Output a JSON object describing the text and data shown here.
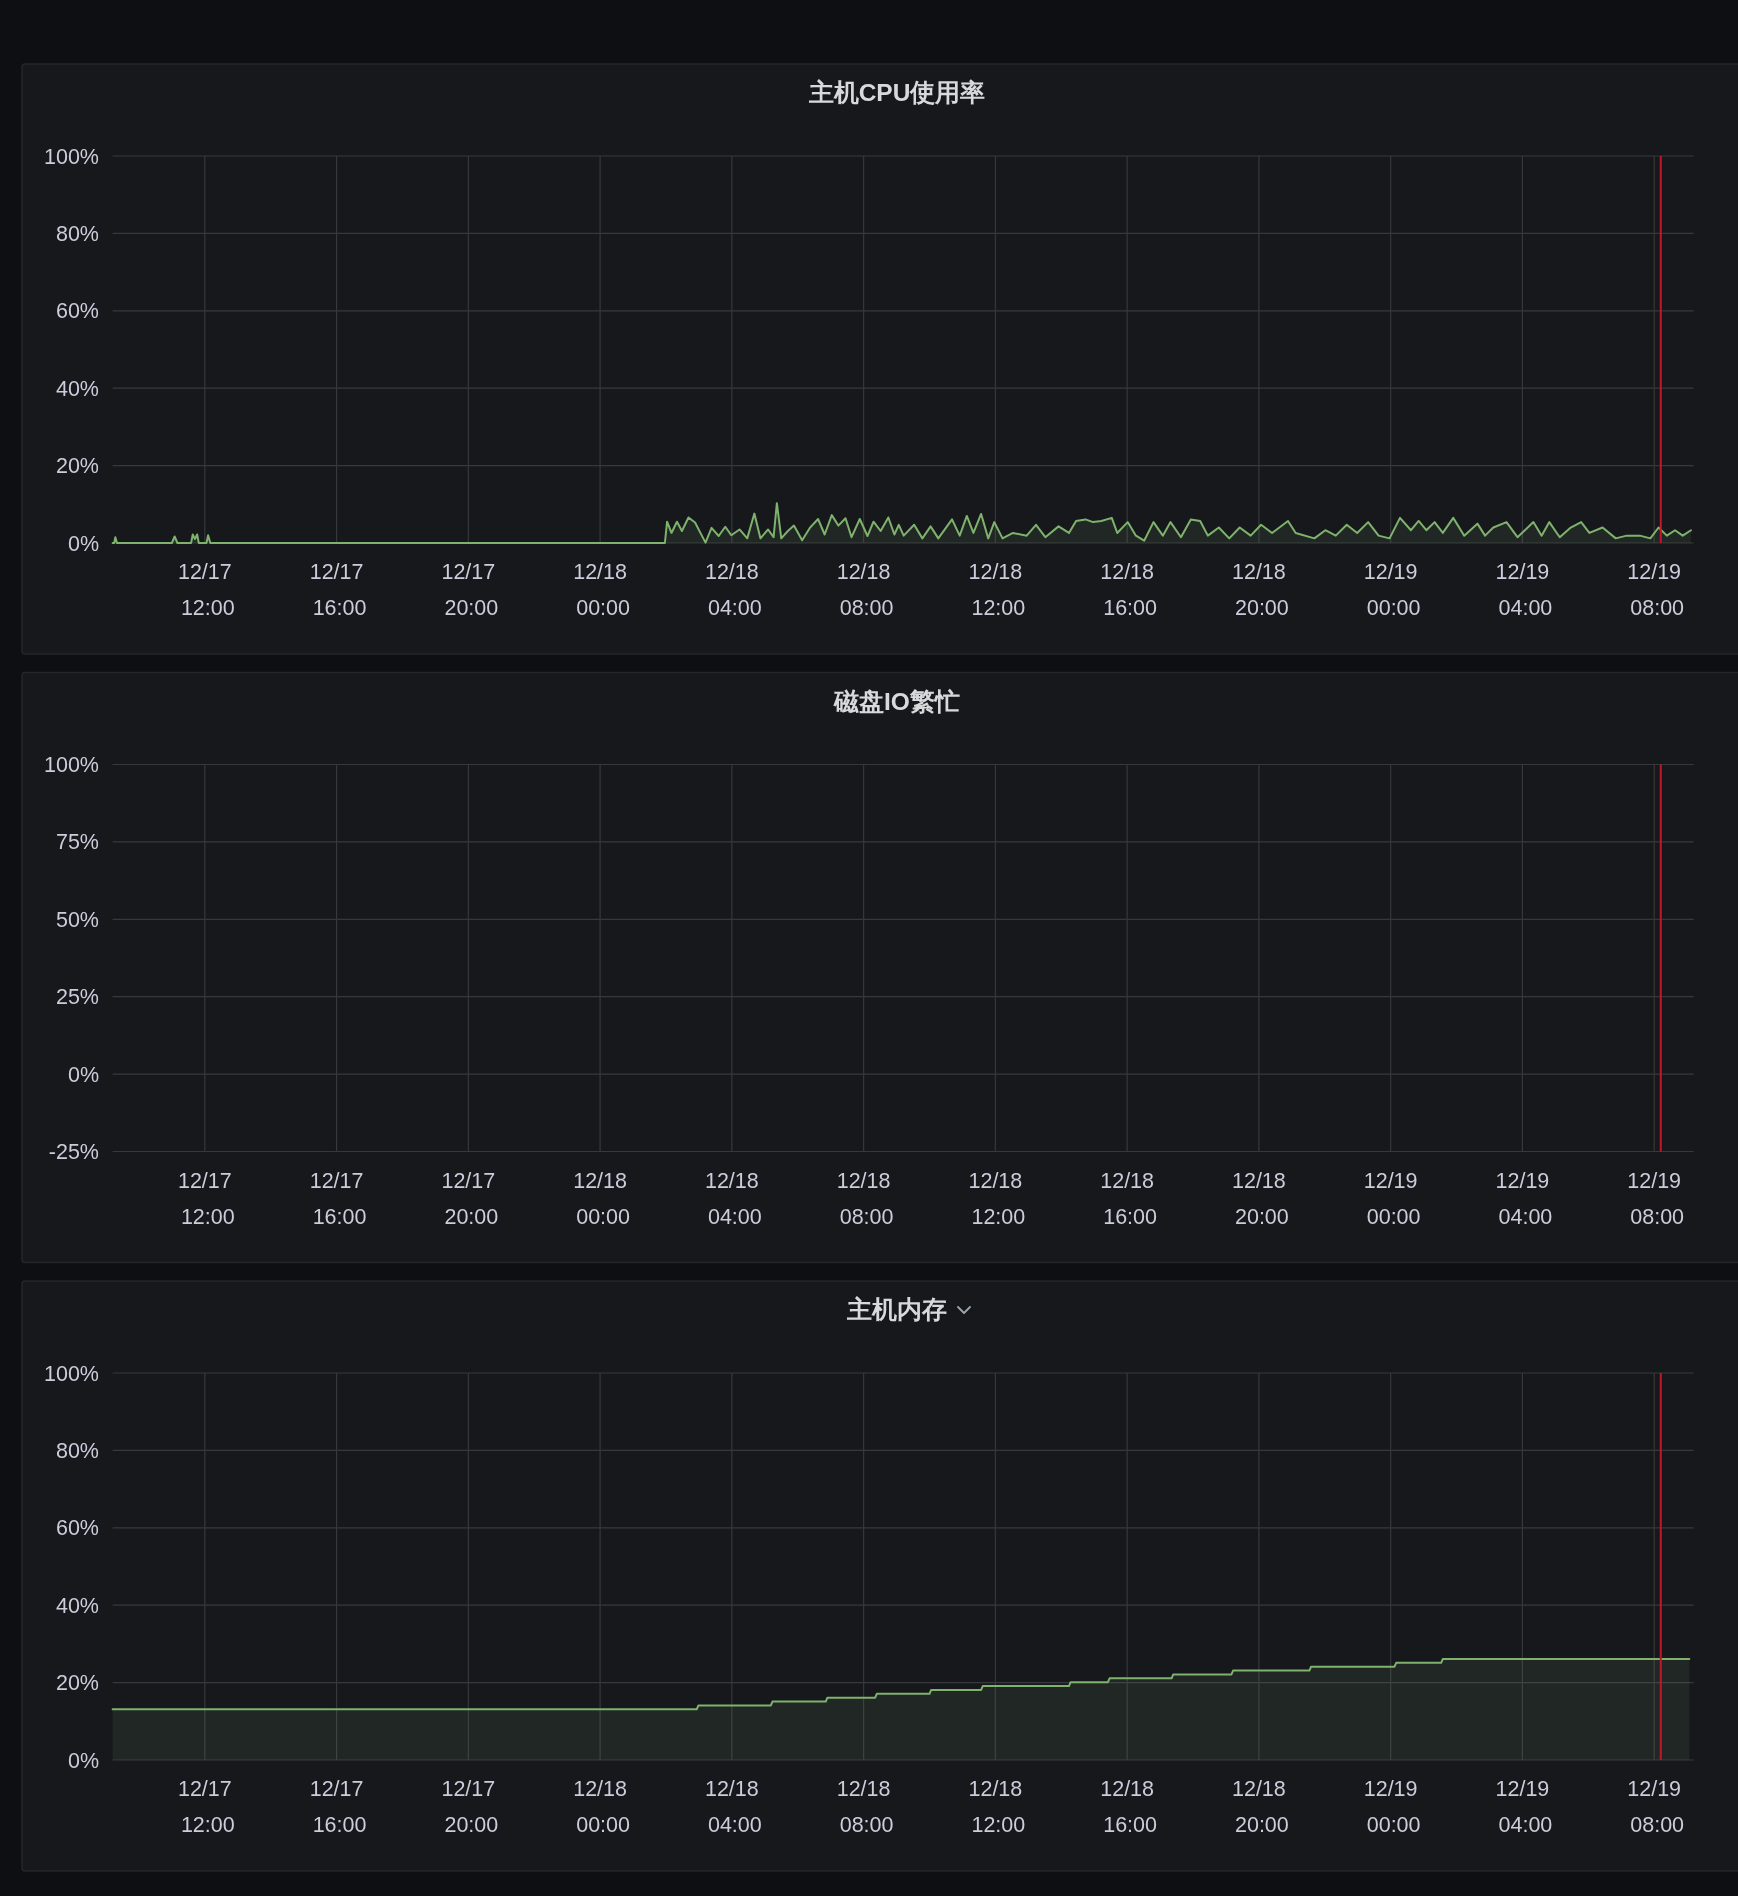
{
  "chart_data": [
    {
      "type": "area",
      "title": "主机CPU使用率",
      "color": "#7eb26d",
      "grid": true,
      "x": [
        "--12-17T09:12",
        "--12-17T09:15",
        "--12-17T09:17",
        "--12-17T09:20",
        "--12-17T11:00",
        "--12-17T11:05",
        "--12-17T11:10",
        "--12-17T11:35",
        "--12-17T11:38",
        "--12-17T11:42",
        "--12-17T11:46",
        "--12-17T11:49",
        "--12-17T12:03",
        "--12-17T12:06",
        "--12-17T12:10",
        "--12-18T01:58",
        "--12-18T02:02",
        "--12-18T02:10",
        "--12-18T02:20",
        "--12-18T02:29",
        "--12-18T02:41",
        "--12-18T02:53",
        "--12-18T03:02",
        "--12-18T03:12",
        "--12-18T03:23",
        "--12-18T03:36",
        "--12-18T03:48",
        "--12-18T03:59",
        "--12-18T04:14",
        "--12-18T04:28",
        "--12-18T04:41",
        "--12-18T04:52",
        "--12-18T05:06",
        "--12-18T05:16",
        "--12-18T05:22",
        "--12-18T05:30",
        "--12-18T05:42",
        "--12-18T05:53",
        "--12-18T06:08",
        "--12-18T06:22",
        "--12-18T06:37",
        "--12-18T06:49",
        "--12-18T07:02",
        "--12-18T07:14",
        "--12-18T07:27",
        "--12-18T07:38",
        "--12-18T07:53",
        "--12-18T08:07",
        "--12-18T08:18",
        "--12-18T08:31",
        "--12-18T08:45",
        "--12-18T08:56",
        "--12-18T09:04",
        "--12-18T09:13",
        "--12-18T09:32",
        "--12-18T09:47",
        "--12-18T10:02",
        "--12-18T10:16",
        "--12-18T10:41",
        "--12-18T10:55",
        "--12-18T11:08",
        "--12-18T11:20",
        "--12-18T11:34",
        "--12-18T11:47",
        "--12-18T11:58",
        "--12-18T12:13",
        "--12-18T12:32",
        "--12-18T12:57",
        "--12-18T13:14",
        "--12-18T13:31",
        "--12-18T13:55",
        "--12-18T14:14",
        "--12-18T14:27",
        "--12-18T14:44",
        "--12-18T14:58",
        "--12-18T15:13",
        "--12-18T15:32",
        "--12-18T15:42",
        "--12-18T16:01",
        "--12-18T16:16",
        "--12-18T16:31",
        "--12-18T16:48",
        "--12-18T17:05",
        "--12-18T17:19",
        "--12-18T17:38",
        "--12-18T17:56",
        "--12-18T18:13",
        "--12-18T18:27",
        "--12-18T18:47",
        "--12-18T19:06",
        "--12-18T19:25",
        "--12-18T19:45",
        "--12-18T20:04",
        "--12-18T20:24",
        "--12-18T20:53",
        "--12-18T21:07",
        "--12-18T21:41",
        "--12-18T22:01",
        "--12-18T22:20",
        "--12-18T22:40",
        "--12-18T22:59",
        "--12-18T23:19",
        "--12-18T23:38",
        "--12-18T23:58",
        "--12-19T00:17",
        "--12-19T00:37",
        "--12-19T00:51",
        "--12-19T01:05",
        "--12-19T01:20",
        "--12-19T01:35",
        "--12-19T01:54",
        "--12-19T02:14",
        "--12-19T02:38",
        "--12-19T02:52",
        "--12-19T03:07",
        "--12-19T03:31",
        "--12-19T03:51",
        "--12-19T04:20",
        "--12-19T04:35",
        "--12-19T04:49",
        "--12-19T05:08",
        "--12-19T05:28",
        "--12-19T05:47",
        "--12-19T06:02",
        "--12-19T06:26",
        "--12-19T06:50",
        "--12-19T07:10",
        "--12-19T07:34",
        "--12-19T07:53",
        "--12-19T08:08",
        "--12-19T08:23",
        "--12-19T08:38",
        "--12-19T08:52",
        "--12-19T09:07"
      ],
      "values": [
        0,
        0,
        1.5,
        0,
        0,
        1.7,
        0,
        0,
        2.2,
        1.0,
        2.2,
        0,
        0,
        2.0,
        0,
        0,
        5.5,
        2.6,
        5.5,
        3.1,
        6.6,
        5.3,
        2.8,
        0.1,
        3.9,
        1.8,
        4.2,
        2.0,
        3.5,
        1.2,
        7.6,
        1.2,
        3.5,
        1.5,
        10.3,
        1.2,
        3.1,
        4.5,
        0.7,
        3.9,
        6.2,
        2.2,
        7.2,
        4.5,
        6.4,
        1.5,
        6.2,
        1.8,
        5.5,
        3.1,
        6.6,
        2.2,
        4.7,
        1.9,
        4.7,
        1.2,
        4.3,
        1.2,
        6.1,
        1.9,
        7.0,
        2.6,
        7.5,
        1.2,
        5.4,
        1.2,
        2.6,
        1.9,
        4.7,
        1.5,
        4.3,
        2.6,
        5.7,
        6.1,
        5.4,
        5.7,
        6.5,
        2.6,
        5.4,
        1.9,
        0.6,
        5.4,
        1.9,
        5.4,
        1.5,
        6.1,
        5.7,
        1.9,
        4.0,
        1.2,
        4.0,
        1.9,
        4.7,
        2.6,
        5.7,
        2.6,
        1.2,
        3.3,
        1.9,
        4.7,
        2.6,
        5.4,
        1.9,
        1.2,
        6.5,
        3.3,
        5.7,
        3.3,
        5.4,
        2.6,
        6.5,
        1.9,
        5.0,
        1.9,
        4.0,
        5.4,
        1.5,
        5.4,
        1.9,
        5.4,
        1.5,
        4.0,
        5.4,
        2.6,
        4.0,
        1.2,
        1.9,
        1.9,
        1.2,
        4.0,
        1.9,
        3.3,
        1.9,
        3.3
      ],
      "xlim": [
        "--12-17T09:12",
        "--12-19T09:12"
      ],
      "xticks": [
        {
          "value": "--12-17T12:00",
          "label": "12/17 12:00"
        },
        {
          "value": "--12-17T16:00",
          "label": "12/17 16:00"
        },
        {
          "value": "--12-17T20:00",
          "label": "12/17 20:00"
        },
        {
          "value": "--12-18T00:00",
          "label": "12/18 00:00"
        },
        {
          "value": "--12-18T04:00",
          "label": "12/18 04:00"
        },
        {
          "value": "--12-18T08:00",
          "label": "12/18 08:00"
        },
        {
          "value": "--12-18T12:00",
          "label": "12/18 12:00"
        },
        {
          "value": "--12-18T16:00",
          "label": "12/18 16:00"
        },
        {
          "value": "--12-18T20:00",
          "label": "12/18 20:00"
        },
        {
          "value": "--12-19T00:00",
          "label": "12/19 00:00"
        },
        {
          "value": "--12-19T04:00",
          "label": "12/19 04:00"
        },
        {
          "value": "--12-19T08:00",
          "label": "12/19 08:00"
        }
      ],
      "ylim": [
        0,
        100
      ],
      "yticks": [
        {
          "value": 0,
          "label": "0%"
        },
        {
          "value": 20,
          "label": "20%"
        },
        {
          "value": 40,
          "label": "40%"
        },
        {
          "value": 60,
          "label": "60%"
        },
        {
          "value": 80,
          "label": "80%"
        },
        {
          "value": 100,
          "label": "100%"
        }
      ],
      "ref_lines": [
        {
          "axis": "x",
          "value": "--12-19T08:12",
          "color": "#c4162a"
        }
      ]
    },
    {
      "type": "line",
      "title": "磁盘IO繁忙",
      "grid": true,
      "xlim": [
        "--12-17T09:12",
        "--12-19T09:12"
      ],
      "xticks": [
        {
          "value": "--12-17T12:00",
          "label": "12/17 12:00"
        },
        {
          "value": "--12-17T16:00",
          "label": "12/17 16:00"
        },
        {
          "value": "--12-17T20:00",
          "label": "12/17 20:00"
        },
        {
          "value": "--12-18T00:00",
          "label": "12/18 00:00"
        },
        {
          "value": "--12-18T04:00",
          "label": "12/18 04:00"
        },
        {
          "value": "--12-18T08:00",
          "label": "12/18 08:00"
        },
        {
          "value": "--12-18T12:00",
          "label": "12/18 12:00"
        },
        {
          "value": "--12-18T16:00",
          "label": "12/18 16:00"
        },
        {
          "value": "--12-18T20:00",
          "label": "12/18 20:00"
        },
        {
          "value": "--12-19T00:00",
          "label": "12/19 00:00"
        },
        {
          "value": "--12-19T04:00",
          "label": "12/19 04:00"
        },
        {
          "value": "--12-19T08:00",
          "label": "12/19 08:00"
        }
      ],
      "ylim": [
        -25,
        100
      ],
      "yticks": [
        {
          "value": -25,
          "label": "-25%"
        },
        {
          "value": 0,
          "label": "0%"
        },
        {
          "value": 25,
          "label": "25%"
        },
        {
          "value": 50,
          "label": "50%"
        },
        {
          "value": 75,
          "label": "75%"
        },
        {
          "value": 100,
          "label": "100%"
        }
      ],
      "ref_lines": [
        {
          "axis": "x",
          "value": "--12-19T08:12",
          "color": "#c4162a"
        }
      ]
    },
    {
      "type": "area",
      "title": "主机内存",
      "color": "#7eb26d",
      "grid": true,
      "x": [
        "--12-17T09:12",
        "--12-18T02:56",
        "--12-18T02:59",
        "--12-18T05:11",
        "--12-18T05:14",
        "--12-18T06:51",
        "--12-18T06:54",
        "--12-18T08:21",
        "--12-18T08:24",
        "--12-18T10:00",
        "--12-18T10:03",
        "--12-18T11:34",
        "--12-18T11:37",
        "--12-18T14:14",
        "--12-18T14:17",
        "--12-18T15:25",
        "--12-18T15:28",
        "--12-18T17:21",
        "--12-18T17:24",
        "--12-18T19:10",
        "--12-18T19:13",
        "--12-18T21:32",
        "--12-18T21:35",
        "--12-19T00:07",
        "--12-19T00:10",
        "--12-19T01:32",
        "--12-19T01:35",
        "--12-19T09:04"
      ],
      "values": [
        13.1,
        13.1,
        14.1,
        14.1,
        15.1,
        15.1,
        16.1,
        16.1,
        17.1,
        17.1,
        18.1,
        18.1,
        19.1,
        19.1,
        20.1,
        20.1,
        21.1,
        21.1,
        22.1,
        22.1,
        23.1,
        23.1,
        24.1,
        24.1,
        25.1,
        25.1,
        26.1,
        26.1
      ],
      "xlim": [
        "--12-17T09:12",
        "--12-19T09:12"
      ],
      "xticks": [
        {
          "value": "--12-17T12:00",
          "label": "12/17 12:00"
        },
        {
          "value": "--12-17T16:00",
          "label": "12/17 16:00"
        },
        {
          "value": "--12-17T20:00",
          "label": "12/17 20:00"
        },
        {
          "value": "--12-18T00:00",
          "label": "12/18 00:00"
        },
        {
          "value": "--12-18T04:00",
          "label": "12/18 04:00"
        },
        {
          "value": "--12-18T08:00",
          "label": "12/18 08:00"
        },
        {
          "value": "--12-18T12:00",
          "label": "12/18 12:00"
        },
        {
          "value": "--12-18T16:00",
          "label": "12/18 16:00"
        },
        {
          "value": "--12-18T20:00",
          "label": "12/18 20:00"
        },
        {
          "value": "--12-19T00:00",
          "label": "12/19 00:00"
        },
        {
          "value": "--12-19T04:00",
          "label": "12/19 04:00"
        },
        {
          "value": "--12-19T08:00",
          "label": "12/19 08:00"
        }
      ],
      "ylim": [
        0,
        100
      ],
      "yticks": [
        {
          "value": 0,
          "label": "0%"
        },
        {
          "value": 20,
          "label": "20%"
        },
        {
          "value": 40,
          "label": "40%"
        },
        {
          "value": 60,
          "label": "60%"
        },
        {
          "value": 80,
          "label": "80%"
        },
        {
          "value": 100,
          "label": "100%"
        }
      ],
      "ref_lines": [
        {
          "axis": "x",
          "value": "--12-19T08:12",
          "color": "#c4162a"
        }
      ]
    }
  ]
}
